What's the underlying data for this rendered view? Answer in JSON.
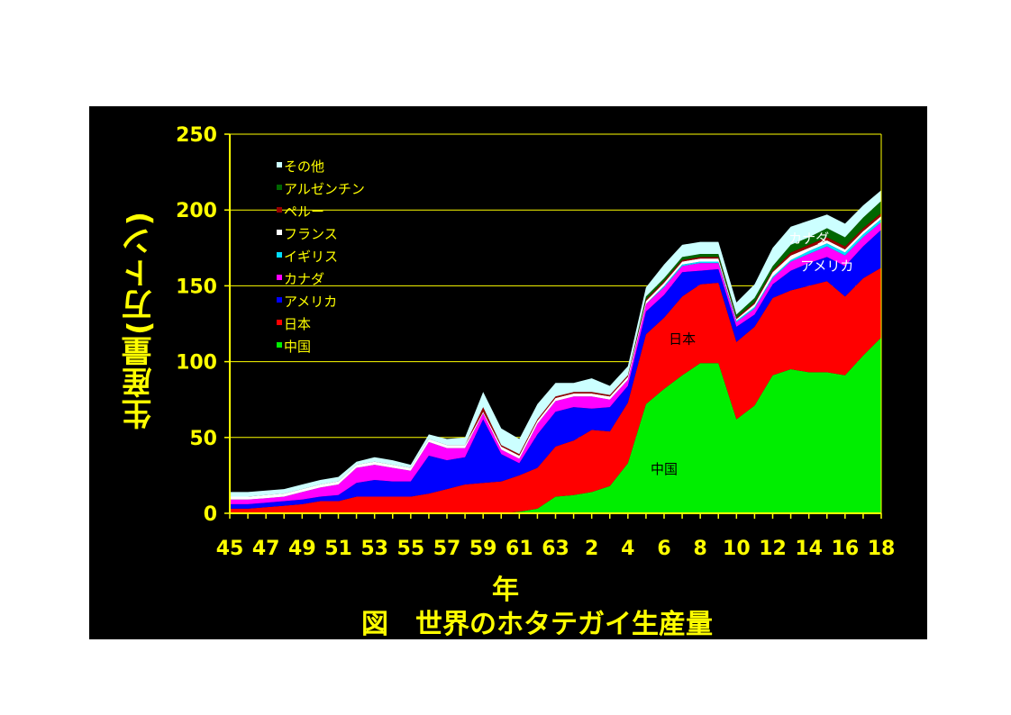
{
  "chart_data": {
    "type": "area",
    "stacked": true,
    "title": "図　世界のホタテガイ生産量",
    "xlabel": "年",
    "ylabel": "生産量(万トン)",
    "ylim": [
      0,
      250
    ],
    "yticks": [
      0,
      50,
      100,
      150,
      200,
      250
    ],
    "grid": "horizontal",
    "legend_position": "top-left",
    "x_tick_labels": [
      "45",
      "47",
      "49",
      "51",
      "53",
      "55",
      "57",
      "59",
      "61",
      "63",
      "2",
      "4",
      "6",
      "8",
      "10",
      "12",
      "14",
      "16",
      "18"
    ],
    "x": [
      "45",
      "46",
      "47",
      "48",
      "49",
      "50",
      "51",
      "52",
      "53",
      "54",
      "55",
      "56",
      "57",
      "58",
      "59",
      "60",
      "61",
      "62",
      "63",
      "1",
      "2",
      "3",
      "4",
      "5",
      "6",
      "7",
      "8",
      "9",
      "10",
      "11",
      "12",
      "13",
      "14",
      "15",
      "16",
      "17",
      "18"
    ],
    "series": [
      {
        "name": "中国",
        "color": "#00ee00",
        "values": [
          0,
          0,
          0,
          0,
          0,
          0,
          0,
          0,
          0,
          0,
          0,
          0,
          0,
          0,
          0,
          0,
          1,
          3,
          11,
          12,
          14,
          18,
          33,
          72,
          82,
          91,
          99,
          99,
          62,
          71,
          91,
          95,
          93,
          93,
          91,
          104,
          116
        ]
      },
      {
        "name": "日本",
        "color": "#ff0000",
        "values": [
          3,
          3,
          4,
          5,
          6,
          8,
          8,
          11,
          11,
          11,
          11,
          13,
          16,
          19,
          20,
          21,
          24,
          27,
          33,
          36,
          41,
          36,
          40,
          46,
          47,
          52,
          52,
          53,
          51,
          52,
          51,
          52,
          57,
          60,
          52,
          51,
          46
        ]
      },
      {
        "name": "アメリカ",
        "color": "#0000ff",
        "values": [
          3,
          3,
          3,
          3,
          3,
          3,
          4,
          9,
          11,
          10,
          10,
          25,
          19,
          18,
          42,
          18,
          8,
          22,
          23,
          22,
          14,
          16,
          11,
          15,
          15,
          16,
          9,
          9,
          10,
          8,
          9,
          13,
          15,
          16,
          20,
          21,
          25
        ]
      },
      {
        "name": "カナダ",
        "color": "#ff00ff",
        "values": [
          3,
          3,
          3,
          3,
          5,
          6,
          7,
          10,
          10,
          9,
          7,
          9,
          8,
          6,
          4,
          3,
          3,
          7,
          7,
          7,
          8,
          5,
          4,
          5,
          5,
          4,
          5,
          4,
          3,
          4,
          4,
          6,
          6,
          7,
          7,
          6,
          5
        ]
      },
      {
        "name": "イギリス",
        "color": "#00ddff",
        "values": [
          0,
          0,
          0,
          0,
          0,
          0,
          0,
          0,
          0,
          0,
          0,
          0,
          0,
          0,
          0,
          0,
          0,
          0,
          0,
          0,
          0,
          0,
          0,
          0,
          1,
          1,
          1,
          1,
          1,
          1,
          1,
          1,
          2,
          2,
          2,
          2,
          2
        ]
      },
      {
        "name": "フランス",
        "color": "#ffffff",
        "values": [
          2,
          2,
          2,
          2,
          2,
          2,
          2,
          2,
          2,
          2,
          2,
          2,
          2,
          2,
          1,
          2,
          2,
          2,
          2,
          2,
          2,
          2,
          2,
          2,
          2,
          2,
          2,
          2,
          1,
          2,
          3,
          3,
          2,
          2,
          2,
          2,
          2
        ]
      },
      {
        "name": "ペルー",
        "color": "#990000",
        "values": [
          0,
          0,
          0,
          0,
          0,
          0,
          0,
          0,
          0,
          0,
          0,
          0,
          0,
          0,
          3,
          1,
          1,
          1,
          1,
          1,
          1,
          1,
          1,
          1,
          1,
          1,
          1,
          1,
          1,
          1,
          1,
          2,
          2,
          2,
          2,
          2,
          2
        ]
      },
      {
        "name": "アルゼンチン",
        "color": "#006600",
        "values": [
          0,
          0,
          0,
          0,
          0,
          0,
          0,
          0,
          0,
          0,
          0,
          0,
          0,
          0,
          0,
          0,
          0,
          0,
          0,
          0,
          0,
          0,
          0,
          2,
          2,
          2,
          2,
          2,
          2,
          3,
          3,
          5,
          5,
          6,
          6,
          7,
          8
        ]
      },
      {
        "name": "その他",
        "color": "#ccffff",
        "values": [
          3,
          3,
          3,
          3,
          3,
          3,
          3,
          2,
          3,
          3,
          2,
          3,
          4,
          5,
          10,
          11,
          10,
          10,
          9,
          6,
          9,
          6,
          6,
          6,
          9,
          8,
          8,
          8,
          8,
          9,
          12,
          12,
          11,
          9,
          9,
          8,
          7
        ]
      }
    ],
    "annotations": [
      {
        "text": "中国",
        "series": "中国",
        "at_x": "6",
        "at_y": 26
      },
      {
        "text": "日本",
        "series": "日本",
        "at_x": "7",
        "at_y": 112
      },
      {
        "text": "アメリカ",
        "series": "アメリカ",
        "at_x": "15",
        "at_y": 160
      },
      {
        "text": "カナダ",
        "series": "カナダ",
        "at_x": "14",
        "at_y": 178
      }
    ]
  }
}
